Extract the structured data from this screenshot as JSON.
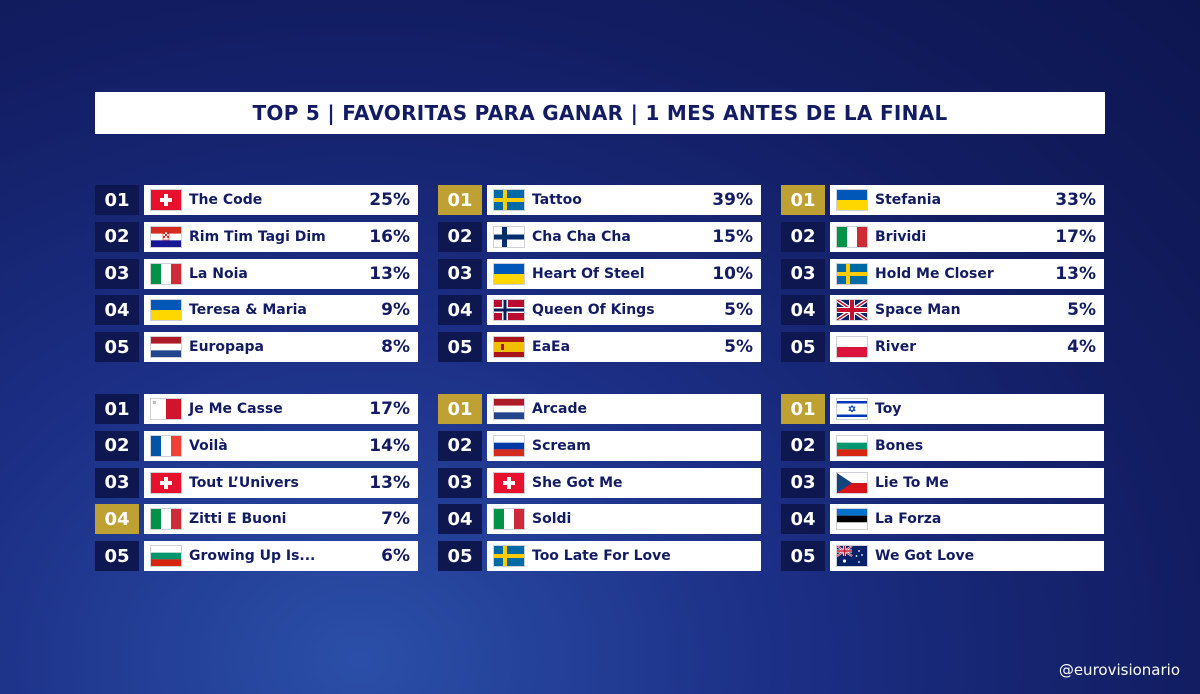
{
  "header": {
    "title": "TOP 5  |  FAVORITAS PARA GANAR  |  1 MES ANTES DE LA FINAL"
  },
  "colors": {
    "navy": "#131c63",
    "rank_bg": "#0f1750",
    "gold": "#bfa033",
    "white": "#ffffff"
  },
  "tables": [
    {
      "rows": [
        {
          "rank": "01",
          "flag": "switzerland-flag-icon",
          "song": "The Code",
          "pct": "25%",
          "highlight": false
        },
        {
          "rank": "02",
          "flag": "croatia-flag-icon",
          "song": "Rim Tim Tagi Dim",
          "pct": "16%",
          "highlight": false
        },
        {
          "rank": "03",
          "flag": "italy-flag-icon",
          "song": "La Noia",
          "pct": "13%",
          "highlight": false
        },
        {
          "rank": "04",
          "flag": "ukraine-flag-icon",
          "song": "Teresa & Maria",
          "pct": "9%",
          "highlight": false
        },
        {
          "rank": "05",
          "flag": "netherlands-flag-icon",
          "song": "Europapa",
          "pct": "8%",
          "highlight": false
        }
      ]
    },
    {
      "rows": [
        {
          "rank": "01",
          "flag": "sweden-flag-icon",
          "song": "Tattoo",
          "pct": "39%",
          "highlight": true
        },
        {
          "rank": "02",
          "flag": "finland-flag-icon",
          "song": "Cha Cha Cha",
          "pct": "15%",
          "highlight": false
        },
        {
          "rank": "03",
          "flag": "ukraine-flag-icon",
          "song": "Heart Of Steel",
          "pct": "10%",
          "highlight": false
        },
        {
          "rank": "04",
          "flag": "norway-flag-icon",
          "song": "Queen Of Kings",
          "pct": "5%",
          "highlight": false
        },
        {
          "rank": "05",
          "flag": "spain-flag-icon",
          "song": "EaEa",
          "pct": "5%",
          "highlight": false
        }
      ]
    },
    {
      "rows": [
        {
          "rank": "01",
          "flag": "ukraine-flag-icon",
          "song": "Stefania",
          "pct": "33%",
          "highlight": true
        },
        {
          "rank": "02",
          "flag": "italy-flag-icon",
          "song": "Brividi",
          "pct": "17%",
          "highlight": false
        },
        {
          "rank": "03",
          "flag": "sweden-flag-icon",
          "song": "Hold Me Closer",
          "pct": "13%",
          "highlight": false
        },
        {
          "rank": "04",
          "flag": "uk-flag-icon",
          "song": "Space Man",
          "pct": "5%",
          "highlight": false
        },
        {
          "rank": "05",
          "flag": "poland-flag-icon",
          "song": "River",
          "pct": "4%",
          "highlight": false
        }
      ]
    },
    {
      "rows": [
        {
          "rank": "01",
          "flag": "malta-flag-icon",
          "song": "Je Me Casse",
          "pct": "17%",
          "highlight": false
        },
        {
          "rank": "02",
          "flag": "france-flag-icon",
          "song": "Voilà",
          "pct": "14%",
          "highlight": false
        },
        {
          "rank": "03",
          "flag": "switzerland-flag-icon",
          "song": "Tout L’Univers",
          "pct": "13%",
          "highlight": false
        },
        {
          "rank": "04",
          "flag": "italy-flag-icon",
          "song": "Zitti E Buoni",
          "pct": "7%",
          "highlight": true
        },
        {
          "rank": "05",
          "flag": "bulgaria-flag-icon",
          "song": "Growing Up Is...",
          "pct": "6%",
          "highlight": false
        }
      ]
    },
    {
      "rows": [
        {
          "rank": "01",
          "flag": "netherlands-flag-icon",
          "song": "Arcade",
          "pct": "",
          "highlight": true
        },
        {
          "rank": "02",
          "flag": "russia-flag-icon",
          "song": "Scream",
          "pct": "",
          "highlight": false
        },
        {
          "rank": "03",
          "flag": "switzerland-flag-icon",
          "song": "She Got Me",
          "pct": "",
          "highlight": false
        },
        {
          "rank": "04",
          "flag": "italy-flag-icon",
          "song": "Soldi",
          "pct": "",
          "highlight": false
        },
        {
          "rank": "05",
          "flag": "sweden-flag-icon",
          "song": "Too Late For Love",
          "pct": "",
          "highlight": false
        }
      ]
    },
    {
      "rows": [
        {
          "rank": "01",
          "flag": "israel-flag-icon",
          "song": "Toy",
          "pct": "",
          "highlight": true
        },
        {
          "rank": "02",
          "flag": "bulgaria-flag-icon",
          "song": "Bones",
          "pct": "",
          "highlight": false
        },
        {
          "rank": "03",
          "flag": "czech-flag-icon",
          "song": "Lie To Me",
          "pct": "",
          "highlight": false
        },
        {
          "rank": "04",
          "flag": "estonia-flag-icon",
          "song": "La Forza",
          "pct": "",
          "highlight": false
        },
        {
          "rank": "05",
          "flag": "australia-flag-icon",
          "song": "We Got Love",
          "pct": "",
          "highlight": false
        }
      ]
    }
  ],
  "footer": {
    "handle": "@eurovisionario"
  }
}
